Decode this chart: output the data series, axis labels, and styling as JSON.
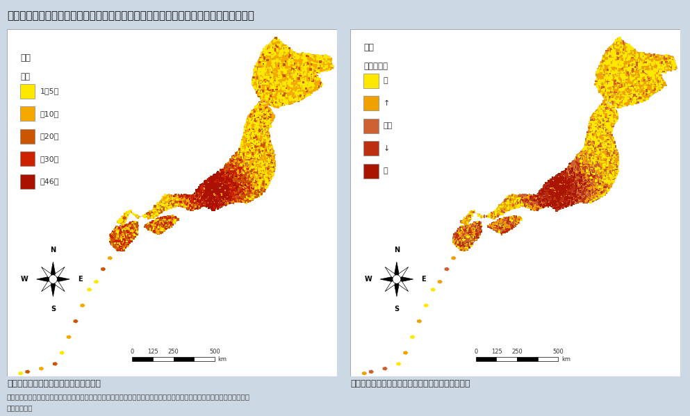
{
  "title": "我が国の脊椎動物の固有種の種数分布及び維管束植物における日本固有種の固有種指数",
  "bg_color": "#ccd8e4",
  "map_bg": "#ffffff",
  "left_map_label": "脊椎動物における日本固有種の種数分布",
  "right_map_label": "維管束植物における日本固有種の固有種指数（＊）",
  "note_line1": "注）「固有種指数」とは生態ニッチモデリングを用いて標本採集地のデータ数の偏りや分類学上の痑問点等を補正した指数。",
  "note_line2": "資料：環境省",
  "left_legend_title1": "凡例",
  "left_legend_title2": "種数",
  "left_legend_items": [
    "1－5種",
    "－10種",
    "－20種",
    "－30種",
    "－46種"
  ],
  "left_legend_colors": [
    "#FFE800",
    "#F5A800",
    "#CC5500",
    "#CC2200",
    "#AA1100"
  ],
  "right_legend_title1": "凡例",
  "right_legend_title2": "固有種指数",
  "right_legend_items": [
    "小",
    "↑",
    "評価",
    "↓",
    "大"
  ],
  "right_legend_colors": [
    "#FFE800",
    "#F0A000",
    "#CC6030",
    "#BB3010",
    "#AA1500"
  ],
  "title_line_color": "#4472C4",
  "border_color": "#aaaaaa",
  "text_color": "#333333",
  "note_color": "#444444"
}
